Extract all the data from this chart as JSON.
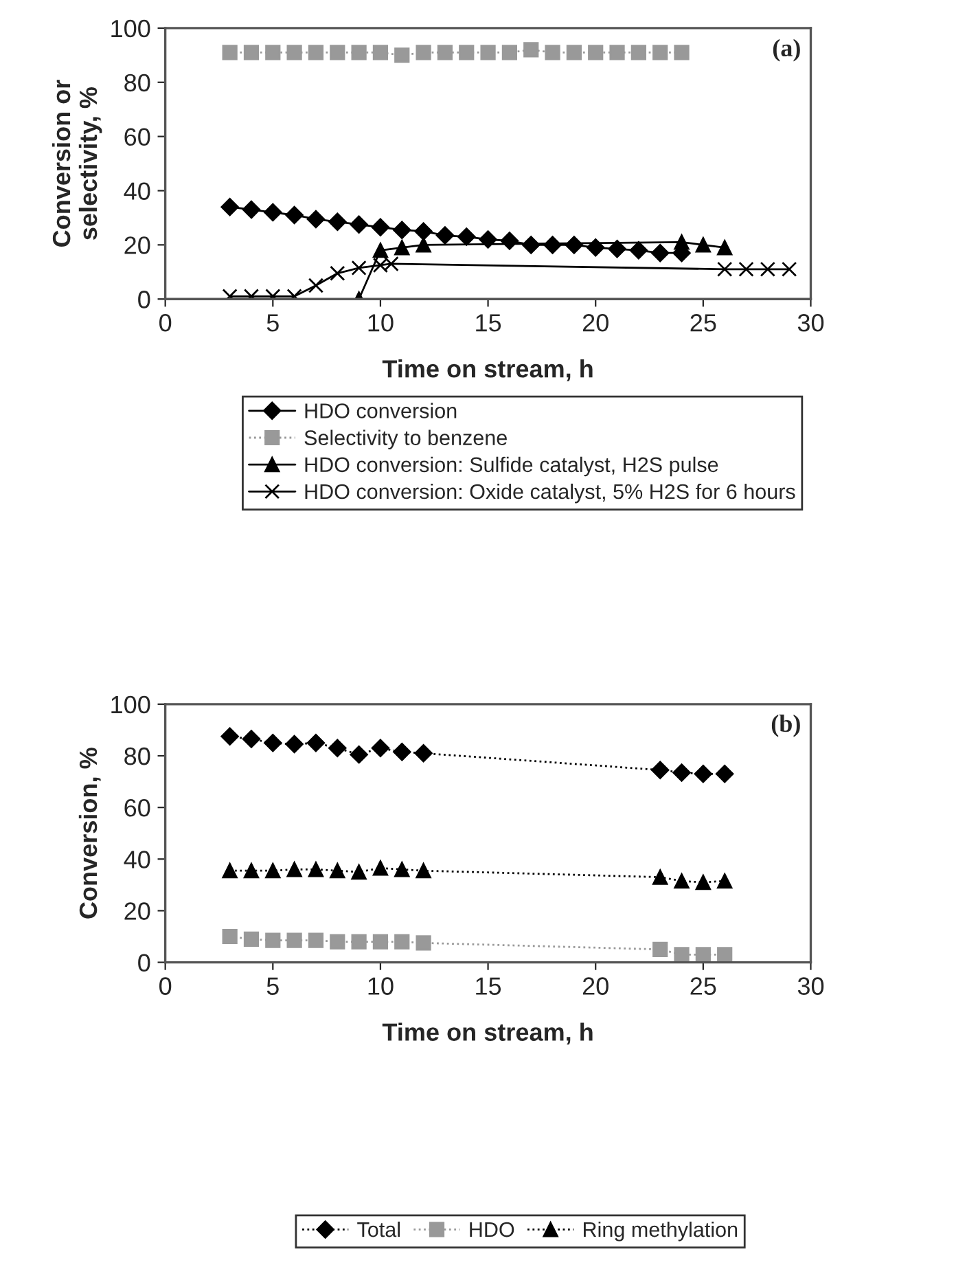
{
  "chart_data": [
    {
      "type": "line",
      "xlabel": "Time on stream, h",
      "ylabel": "Conversion or\nselectivity, %",
      "annotations": [
        "(a)"
      ],
      "xlim": [
        0,
        30
      ],
      "ylim": [
        0,
        100
      ],
      "xticks": [
        0,
        5,
        10,
        15,
        20,
        25,
        30
      ],
      "yticks": [
        0,
        20,
        40,
        60,
        80,
        100
      ],
      "grid": false,
      "legend": "bottom",
      "series": [
        {
          "name": "HDO conversion",
          "color": "#000000",
          "marker": "diamond",
          "line_style": "solid",
          "x": [
            3,
            4,
            5,
            6,
            7,
            8,
            9,
            10,
            11,
            12,
            13,
            14,
            15,
            16,
            17,
            18,
            19,
            20,
            21,
            22,
            23,
            24
          ],
          "values": [
            34,
            33,
            32,
            31,
            29.5,
            28.5,
            27.5,
            26.5,
            25.5,
            25,
            23.5,
            23,
            22,
            21.5,
            20,
            20,
            20,
            19,
            18.5,
            18,
            17,
            17
          ]
        },
        {
          "name": "Selectivity to benzene",
          "color": "#999999",
          "marker": "square",
          "line_style": "dotted",
          "x": [
            3,
            4,
            5,
            6,
            7,
            8,
            9,
            10,
            11,
            12,
            13,
            14,
            15,
            16,
            17,
            18,
            19,
            20,
            21,
            22,
            23,
            24
          ],
          "values": [
            91,
            91,
            91,
            91,
            91,
            91,
            91,
            91,
            90,
            91,
            91,
            91,
            91,
            91,
            92,
            91,
            91,
            91,
            91,
            91,
            91,
            91
          ]
        },
        {
          "name": "HDO conversion: Sulfide catalyst, H2S pulse",
          "color": "#000000",
          "marker": "triangle",
          "line_style": "solid",
          "x": [
            9,
            10,
            11,
            12,
            24,
            25,
            26
          ],
          "values": [
            0,
            18,
            19,
            20,
            21,
            20,
            19
          ]
        },
        {
          "name": "HDO conversion: Oxide catalyst, 5% H2S for 6 hours",
          "color": "#000000",
          "marker": "cross",
          "line_style": "solid",
          "x": [
            3,
            4,
            5,
            6,
            7,
            8,
            9,
            10,
            10.5,
            26,
            27,
            28,
            29
          ],
          "values": [
            1,
            1,
            1,
            1,
            5,
            9.5,
            11.5,
            12.5,
            13,
            11,
            11,
            11,
            11
          ]
        }
      ]
    },
    {
      "type": "line",
      "xlabel": "Time on stream, h",
      "ylabel": "Conversion, %",
      "annotations": [
        "(b)"
      ],
      "xlim": [
        0,
        30
      ],
      "ylim": [
        0,
        100
      ],
      "xticks": [
        0,
        5,
        10,
        15,
        20,
        25,
        30
      ],
      "yticks": [
        0,
        20,
        40,
        60,
        80,
        100
      ],
      "grid": false,
      "legend": "bottom",
      "series": [
        {
          "name": "Total",
          "color": "#000000",
          "marker": "diamond",
          "line_style": "dotted",
          "x": [
            3,
            4,
            5,
            6,
            7,
            8,
            9,
            10,
            11,
            12,
            23,
            24,
            25,
            26
          ],
          "values": [
            87.5,
            86.5,
            85,
            84.5,
            85,
            83,
            80.5,
            83,
            81.5,
            81,
            74.5,
            73.5,
            73,
            73
          ]
        },
        {
          "name": "HDO",
          "color": "#999999",
          "marker": "square",
          "line_style": "dotted",
          "x": [
            3,
            4,
            5,
            6,
            7,
            8,
            9,
            10,
            11,
            12,
            23,
            24,
            25,
            26
          ],
          "values": [
            10,
            9,
            8.5,
            8.5,
            8.5,
            8,
            8,
            8,
            8,
            7.5,
            5,
            3,
            3,
            3
          ]
        },
        {
          "name": "Ring methylation",
          "color": "#000000",
          "marker": "triangle",
          "line_style": "dotted",
          "x": [
            3,
            4,
            5,
            6,
            7,
            8,
            9,
            10,
            11,
            12,
            23,
            24,
            25,
            26
          ],
          "values": [
            35.5,
            35.5,
            35.5,
            36,
            36,
            35.5,
            35,
            36.5,
            36,
            35.5,
            33,
            31.5,
            31,
            31.5
          ]
        }
      ]
    }
  ]
}
